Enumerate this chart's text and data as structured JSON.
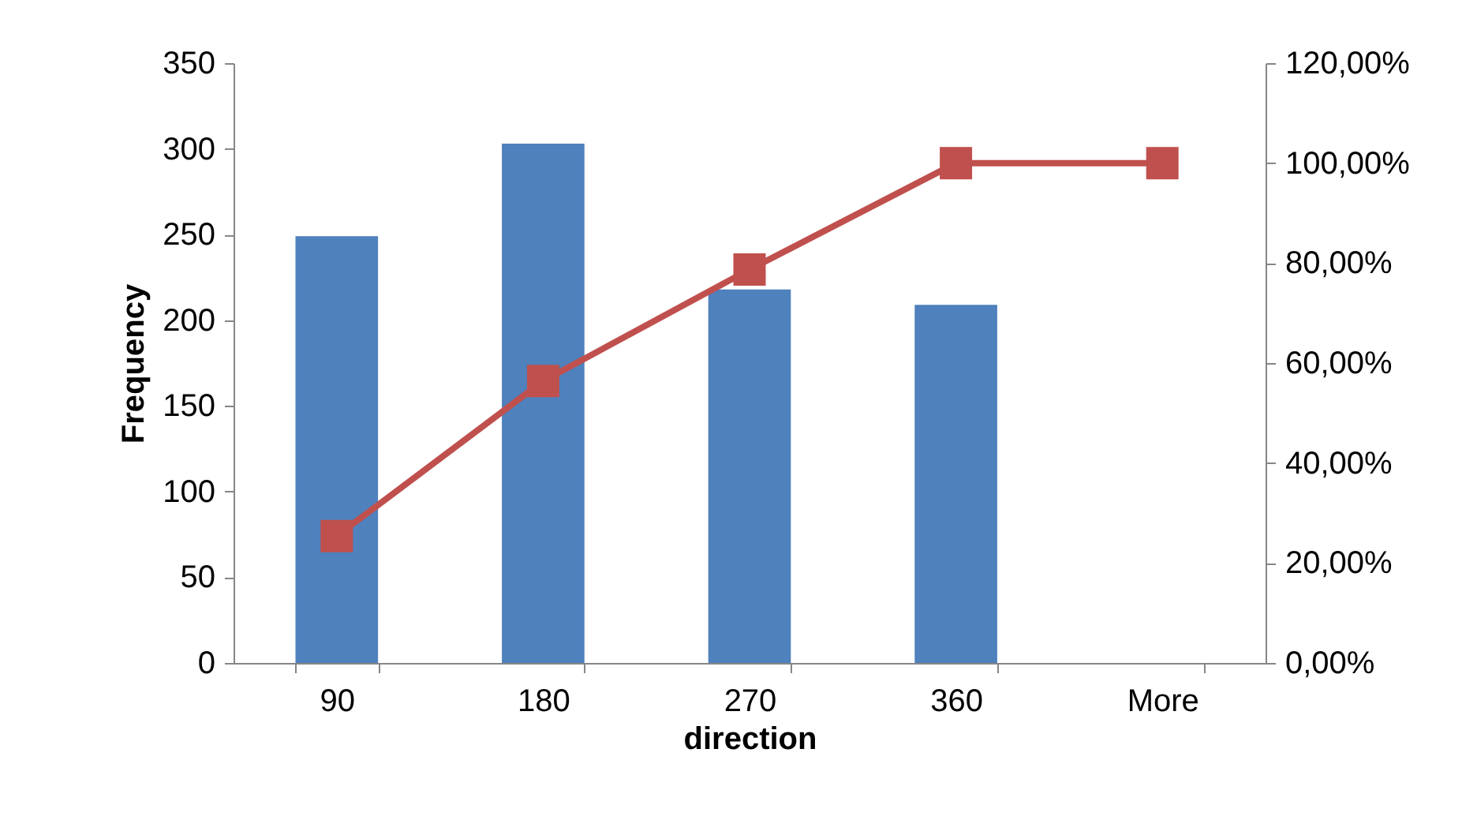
{
  "chart_data": {
    "type": "bar",
    "xlabel": "direction",
    "ylabel": "Frequency",
    "categories": [
      "90",
      "180",
      "270",
      "360",
      "More"
    ],
    "series": [
      {
        "color": "#4f81bd",
        "values": [
          249,
          303,
          218,
          209,
          0
        ]
      },
      {
        "type": "line",
        "axis": "y2",
        "color": "#c0504d",
        "values": [
          25.4,
          56.4,
          78.7,
          100,
          100
        ],
        "marker": "square",
        "line_style": "solid"
      }
    ],
    "ylim": [
      0,
      350
    ],
    "yticks": [
      0,
      50,
      100,
      150,
      200,
      250,
      300,
      350
    ],
    "y2lim": [
      0,
      120
    ],
    "y2ticks": [
      {
        "value": 0,
        "label": "0,00%"
      },
      {
        "value": 20,
        "label": "20,00%"
      },
      {
        "value": 40,
        "label": "40,00%"
      },
      {
        "value": 60,
        "label": "60,00%"
      },
      {
        "value": 80,
        "label": "80,00%"
      },
      {
        "value": 100,
        "label": "100,00%"
      },
      {
        "value": 120,
        "label": "120,00%"
      }
    ]
  }
}
